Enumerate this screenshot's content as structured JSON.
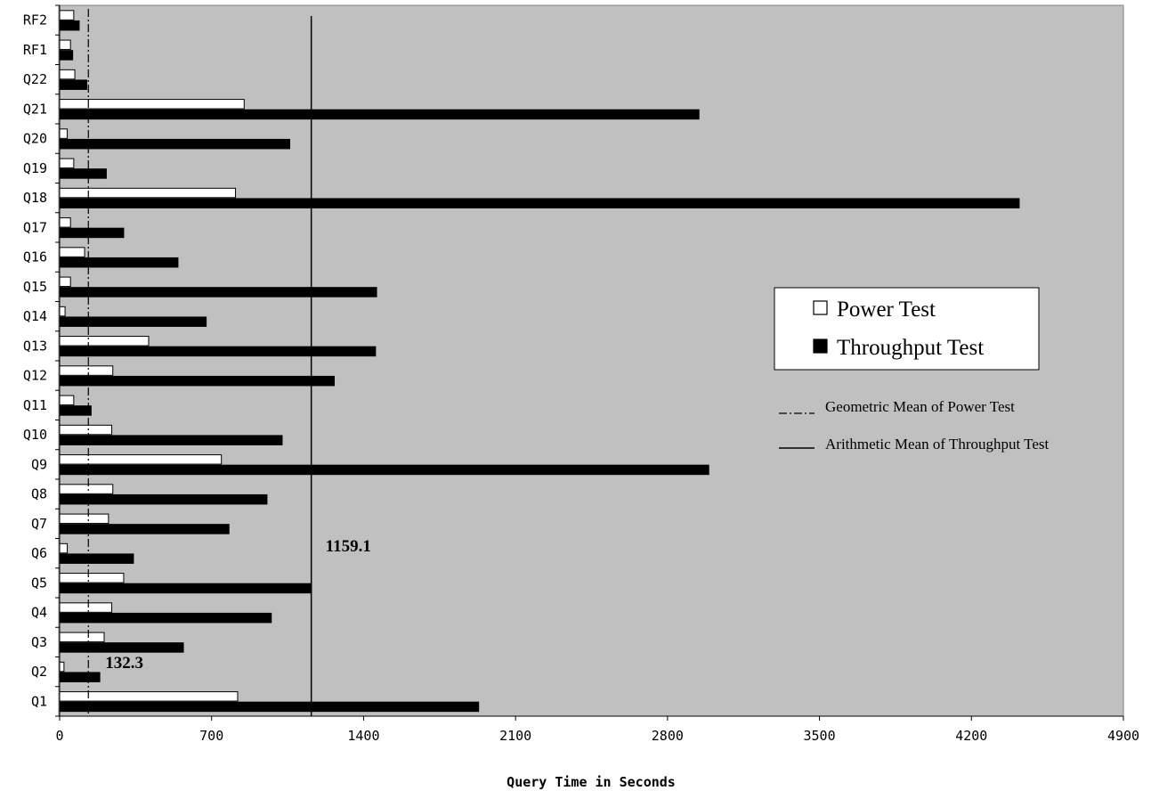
{
  "chart_data": {
    "type": "bar",
    "orientation": "horizontal",
    "categories": [
      "Q1",
      "Q2",
      "Q3",
      "Q4",
      "Q5",
      "Q6",
      "Q7",
      "Q8",
      "Q9",
      "Q10",
      "Q11",
      "Q12",
      "Q13",
      "Q14",
      "Q15",
      "Q16",
      "Q17",
      "Q18",
      "Q19",
      "Q20",
      "Q21",
      "Q22",
      "RF1",
      "RF2"
    ],
    "series": [
      {
        "name": "Power Test",
        "fill": "#ffffff",
        "values": [
          820,
          20,
          205,
          240,
          295,
          35,
          225,
          245,
          745,
          240,
          65,
          245,
          410,
          25,
          50,
          115,
          50,
          810,
          65,
          35,
          850,
          70,
          50,
          65
        ]
      },
      {
        "name": "Throughput Test",
        "fill": "#000000",
        "values": [
          1930,
          185,
          570,
          975,
          1160,
          340,
          780,
          955,
          2990,
          1025,
          145,
          1265,
          1455,
          675,
          1460,
          545,
          295,
          4420,
          215,
          1060,
          2945,
          125,
          60,
          90
        ]
      }
    ],
    "reference_lines": [
      {
        "name": "Geometric Mean of Power Test",
        "value": 132.3,
        "label": "132.3",
        "style": "dash-dot"
      },
      {
        "name": "Arithmetic Mean of Throughput Test",
        "value": 1159.1,
        "label": "1159.1",
        "style": "solid"
      }
    ],
    "xlabel": "Query Time in Seconds",
    "ylabel": "",
    "xlim": [
      0,
      4900
    ],
    "xticks": [
      0,
      700,
      1400,
      2100,
      2800,
      3500,
      4200,
      4900
    ],
    "plot_background": "#c0c0c0",
    "grid": false,
    "legend_position": "right"
  }
}
